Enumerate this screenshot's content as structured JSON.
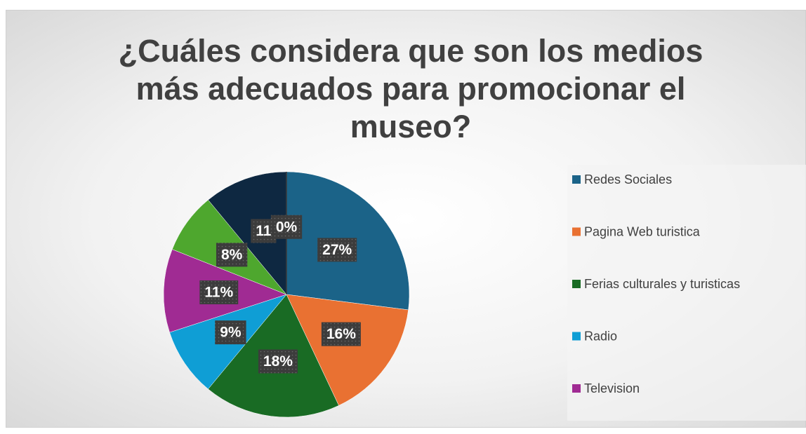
{
  "chart_data": {
    "type": "pie",
    "title": "¿Cuáles considera que son los medios más adecuados para promocionar el museo?",
    "categories": [
      "Redes Sociales",
      "Pagina Web turistica",
      "Ferias culturales y turisticas",
      "Radio",
      "Television",
      null,
      null,
      null
    ],
    "values": [
      27,
      16,
      18,
      9,
      11,
      8,
      11,
      0
    ],
    "value_labels": [
      "27%",
      "16%",
      "18%",
      "9%",
      "11%",
      "8%",
      "11",
      "0%"
    ],
    "colors": [
      "#1b6388",
      "#e97132",
      "#196b24",
      "#0f9ed5",
      "#a02b93",
      "#4ea72e",
      "#0e2841",
      "#3a3a3a"
    ],
    "legend": "right"
  }
}
